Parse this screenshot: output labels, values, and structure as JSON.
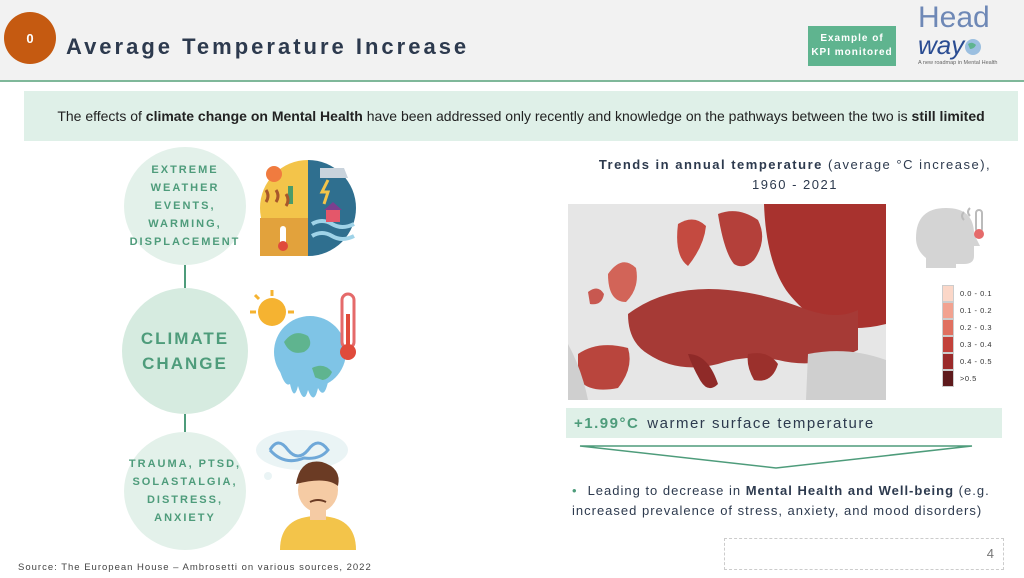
{
  "header": {
    "badge": "0",
    "title": "Average Temperature Increase",
    "kpi_line1": "Example of",
    "kpi_line2": "KPI monitored",
    "logo_top": "Head",
    "logo_bottom": "way",
    "logo_tagline": "A new roadmap in Mental Health"
  },
  "intro": {
    "part1": "The effects of ",
    "bold1": "climate change on Mental Health",
    "part2": " have been addressed only recently and knowledge on the pathways between the two is ",
    "bold2": "still limited"
  },
  "left": {
    "c1_lines": [
      "EXTREME",
      "WEATHER",
      "EVENTS,",
      "WARMING,",
      "DISPLACEMENT"
    ],
    "c2_lines": [
      "CLIMATE",
      "CHANGE"
    ],
    "c3_lines": [
      "TRAUMA, PTSD,",
      "SOLASTALGIA,",
      "DISTRESS,",
      "ANXIETY"
    ]
  },
  "chart": {
    "title_bold": "Trends in annual temperature",
    "title_rest": " (average °C increase),",
    "title_line2": "1960 - 2021",
    "legend": [
      {
        "label": "0.0 - 0.1",
        "color": "#fbd7c8"
      },
      {
        "label": "0.1 - 0.2",
        "color": "#f2a290"
      },
      {
        "label": "0.2 - 0.3",
        "color": "#e07060"
      },
      {
        "label": "0.3 - 0.4",
        "color": "#c2413a"
      },
      {
        "label": "0.4 - 0.5",
        "color": "#9b2a2a"
      },
      {
        "label": ">0.5",
        "color": "#5e1a1c"
      }
    ]
  },
  "warming": {
    "value": "+1.99°C",
    "text": "warmer surface temperature"
  },
  "bullet": {
    "pre": "Leading to decrease in ",
    "bold": "Mental Health and Well-being",
    "post": " (e.g. increased prevalence of stress, anxiety, and mood disorders)"
  },
  "page_number": "4",
  "source": "Source: The European House – Ambrosetti on various sources, 2022"
}
